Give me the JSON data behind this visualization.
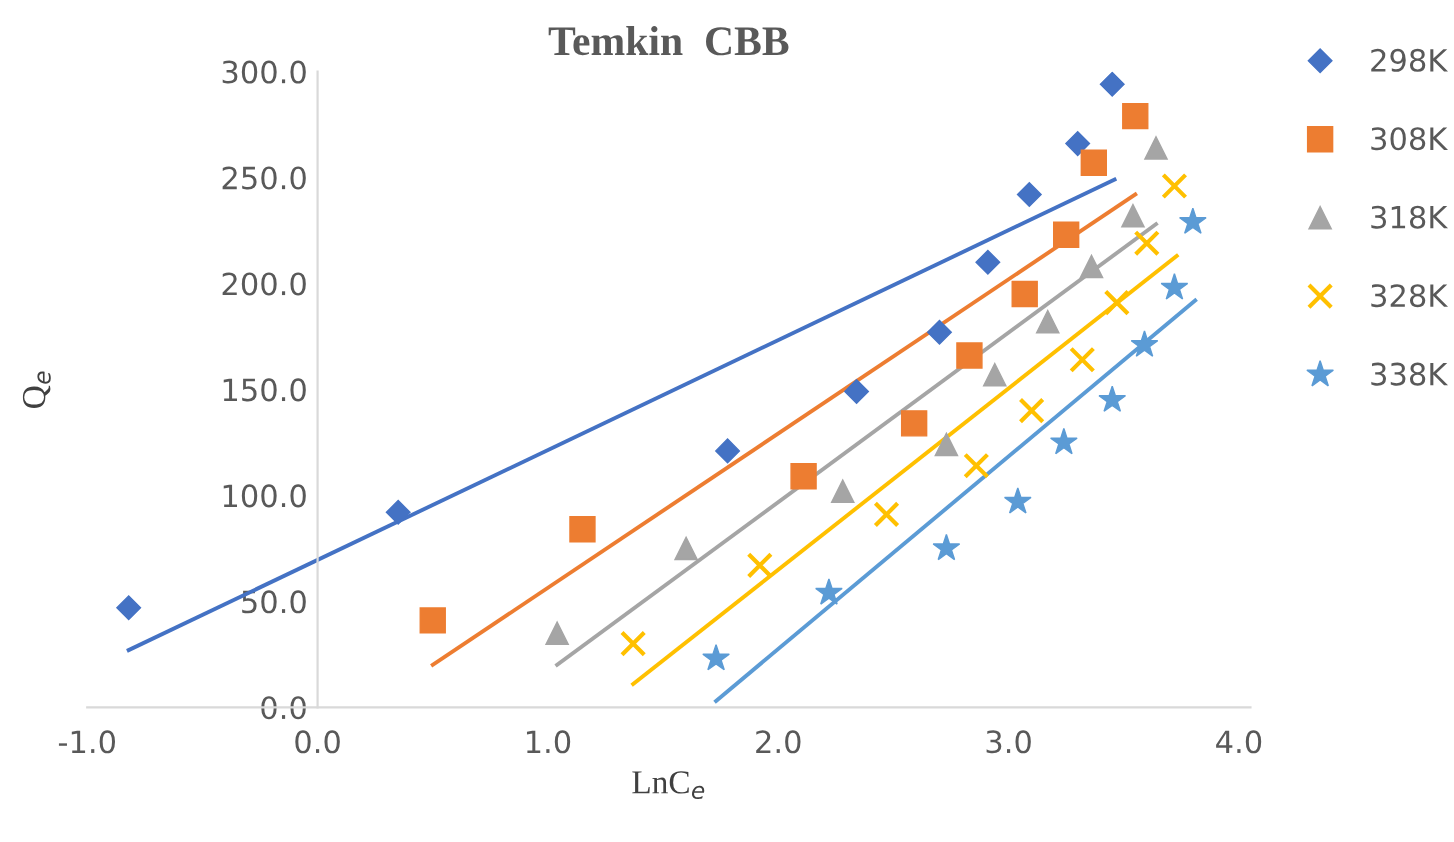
{
  "chart_data": {
    "type": "scatter",
    "title": "Temkin  CBB",
    "xlabel": "LnC$_{e}$",
    "ylabel": "Q$_{e}$",
    "xlim": [
      -1.0,
      4.05
    ],
    "ylim": [
      0,
      300
    ],
    "xticks": [
      {
        "value": -1,
        "label": "-1.0"
      },
      {
        "value": 0,
        "label": "0.0"
      },
      {
        "value": 1,
        "label": "1.0"
      },
      {
        "value": 2,
        "label": "2.0"
      },
      {
        "value": 3,
        "label": "3.0"
      },
      {
        "value": 4,
        "label": "4.0"
      }
    ],
    "yticks": [
      {
        "value": 0,
        "label": "0.0"
      },
      {
        "value": 50,
        "label": "50.0"
      },
      {
        "value": 100,
        "label": "100.0"
      },
      {
        "value": 150,
        "label": "150.0"
      },
      {
        "value": 200,
        "label": "200.0"
      },
      {
        "value": 250,
        "label": "250.0"
      },
      {
        "value": 300,
        "label": "300.0"
      }
    ],
    "grid": false,
    "legend": "right",
    "series": [
      {
        "name": "298K",
        "color": "#4472c4",
        "marker": "diamond",
        "x": [
          -0.82,
          0.35,
          1.78,
          2.34,
          2.7,
          2.91,
          3.09,
          3.3,
          3.45
        ],
        "values": [
          47,
          92,
          121,
          149,
          177,
          210,
          242,
          266,
          294
        ]
      },
      {
        "name": "308K",
        "color": "#ed7d31",
        "marker": "square",
        "x": [
          0.5,
          1.15,
          2.11,
          2.59,
          2.83,
          3.07,
          3.25,
          3.37,
          3.55
        ],
        "values": [
          41,
          84,
          109,
          134,
          166,
          195,
          223,
          257,
          279
        ]
      },
      {
        "name": "318K",
        "color": "#a5a5a5",
        "marker": "triangle",
        "x": [
          1.04,
          1.6,
          2.28,
          2.73,
          2.94,
          3.17,
          3.36,
          3.54,
          3.64
        ],
        "values": [
          35,
          75,
          102,
          124,
          157,
          182,
          208,
          232,
          264
        ]
      },
      {
        "name": "328K",
        "color": "#ffc000",
        "marker": "cross",
        "x": [
          1.37,
          1.92,
          2.47,
          2.86,
          3.1,
          3.32,
          3.47,
          3.6,
          3.72
        ],
        "values": [
          30,
          67,
          91,
          114,
          140,
          164,
          191,
          219,
          246
        ]
      },
      {
        "name": "338K",
        "color": "#5b9bd5",
        "marker": "star",
        "x": [
          1.73,
          2.22,
          2.73,
          3.04,
          3.24,
          3.45,
          3.59,
          3.72,
          3.8
        ],
        "values": [
          23,
          54,
          75,
          97,
          125,
          145,
          171,
          198,
          229
        ]
      },
      {
        "type": "line",
        "color": "#4472c4",
        "x": [
          -0.82,
          3.46
        ],
        "values": [
          27,
          249
        ]
      },
      {
        "type": "line",
        "color": "#ed7d31",
        "x": [
          0.5,
          3.55
        ],
        "values": [
          20,
          242
        ]
      },
      {
        "type": "line",
        "color": "#a5a5a5",
        "x": [
          1.04,
          3.64
        ],
        "values": [
          20,
          228
        ]
      },
      {
        "type": "line",
        "color": "#ffc000",
        "x": [
          1.37,
          3.73
        ],
        "values": [
          11,
          213
        ]
      },
      {
        "type": "line",
        "color": "#5b9bd5",
        "x": [
          1.73,
          3.81
        ],
        "values": [
          3,
          192
        ]
      }
    ]
  }
}
